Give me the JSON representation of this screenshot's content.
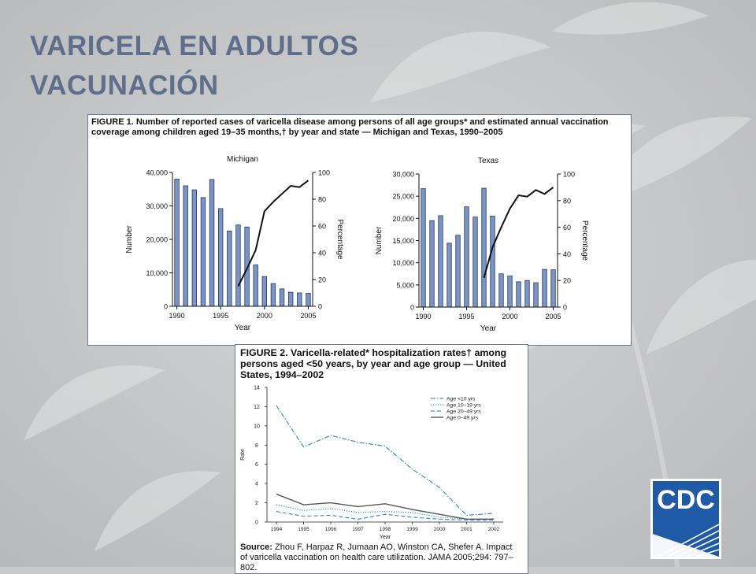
{
  "slide": {
    "title_line1": "VARICELA EN ADULTOS",
    "title_line2": "VACUNACIÓN"
  },
  "figure1": {
    "caption": "FIGURE 1. Number of reported cases of varicella disease among persons of all age groups* and estimated annual vaccination coverage among children aged 19–35 months,† by year and state — Michigan and Texas, 1990–2005"
  },
  "figure2": {
    "caption": "FIGURE 2. Varicella-related* hospitalization rates† among persons aged <50 years, by year and age group — United States, 1994–2002",
    "source_label": "Source:",
    "source_text": "Zhou F, Harpaz R, Jumaan AO, Winston CA, Shefer A. Impact of varicella vaccination on health care utilization. JAMA 2005;294: 797–802."
  },
  "logo": {
    "text": "CDC",
    "colors": {
      "primary": "#1f5aa6",
      "background": "#ffffff"
    }
  },
  "colors": {
    "bar_fill": "#7a94c8",
    "bar_stroke": "#27395e",
    "coverage_line": "#111111",
    "fig2_series": "#3a8fc8",
    "fig2_total": "#555555"
  },
  "chart_data": [
    {
      "type": "bar",
      "title": "Michigan",
      "xlabel": "Year",
      "ylabel": "Number",
      "y2label": "Percentage",
      "x_ticks": [
        "1990",
        "1995",
        "2000",
        "2005"
      ],
      "y_ticks": [
        "0",
        "10,000",
        "20,000",
        "30,000",
        "40,000"
      ],
      "y2_ticks": [
        "0",
        "20",
        "40",
        "60",
        "80",
        "100"
      ],
      "ylim": [
        0,
        40000
      ],
      "y2lim": [
        0,
        100
      ],
      "categories": [
        1990,
        1991,
        1992,
        1993,
        1994,
        1995,
        1996,
        1997,
        1998,
        1999,
        2000,
        2001,
        2002,
        2003,
        2004,
        2005
      ],
      "values": [
        38000,
        36000,
        34800,
        32500,
        37900,
        29200,
        22500,
        24300,
        23700,
        12400,
        8900,
        6800,
        5200,
        4200,
        4000,
        3900
      ],
      "line": {
        "x": [
          1997,
          1998,
          1999,
          2000,
          2001,
          2002,
          2003,
          2004,
          2005
        ],
        "values": [
          15,
          28,
          42,
          71,
          78,
          84,
          90,
          89,
          94
        ]
      }
    },
    {
      "type": "bar",
      "title": "Texas",
      "xlabel": "Year",
      "ylabel": "Number",
      "y2label": "Percentage",
      "x_ticks": [
        "1990",
        "1995",
        "2000",
        "2005"
      ],
      "y_ticks": [
        "0",
        "5,000",
        "10,000",
        "15,000",
        "20,000",
        "25,000",
        "30,000"
      ],
      "y2_ticks": [
        "0",
        "20",
        "40",
        "60",
        "80",
        "100"
      ],
      "ylim": [
        0,
        30000
      ],
      "y2lim": [
        0,
        100
      ],
      "categories": [
        1990,
        1991,
        1992,
        1993,
        1994,
        1995,
        1996,
        1997,
        1998,
        1999,
        2000,
        2001,
        2002,
        2003,
        2004,
        2005
      ],
      "values": [
        26700,
        19500,
        20600,
        14400,
        16200,
        22600,
        20300,
        26800,
        20500,
        7500,
        7000,
        5700,
        6000,
        5500,
        8500,
        8400
      ],
      "line": {
        "x": [
          1997,
          1998,
          1999,
          2000,
          2001,
          2002,
          2003,
          2004,
          2005
        ],
        "values": [
          22,
          45,
          60,
          74,
          84,
          83,
          88,
          85,
          90
        ]
      }
    },
    {
      "type": "line",
      "xlabel": "Year",
      "ylabel": "Rate",
      "x": [
        1994,
        1995,
        1996,
        1997,
        1998,
        1999,
        2000,
        2001,
        2002
      ],
      "y_ticks": [
        "0",
        "2",
        "4",
        "6",
        "8",
        "10",
        "12",
        "14"
      ],
      "ylim": [
        0,
        14
      ],
      "legend_position": "top-right",
      "series": [
        {
          "name": "Age <10 yrs",
          "style": "dashdot",
          "values": [
            12.1,
            7.8,
            9.0,
            8.3,
            7.9,
            5.5,
            3.6,
            0.7,
            0.9
          ]
        },
        {
          "name": "Age 10–19 yrs",
          "style": "dotted",
          "values": [
            1.8,
            1.2,
            1.4,
            1.0,
            1.1,
            1.0,
            0.5,
            0.3,
            0.3
          ]
        },
        {
          "name": "Age 20–49 yrs",
          "style": "dashed",
          "values": [
            1.1,
            0.6,
            0.7,
            0.3,
            0.8,
            0.5,
            0.3,
            0.2,
            0.2
          ]
        },
        {
          "name": "Age 0–49 yrs",
          "style": "solid",
          "values": [
            2.9,
            1.8,
            2.0,
            1.6,
            1.9,
            1.3,
            0.8,
            0.3,
            0.3
          ]
        }
      ]
    }
  ]
}
